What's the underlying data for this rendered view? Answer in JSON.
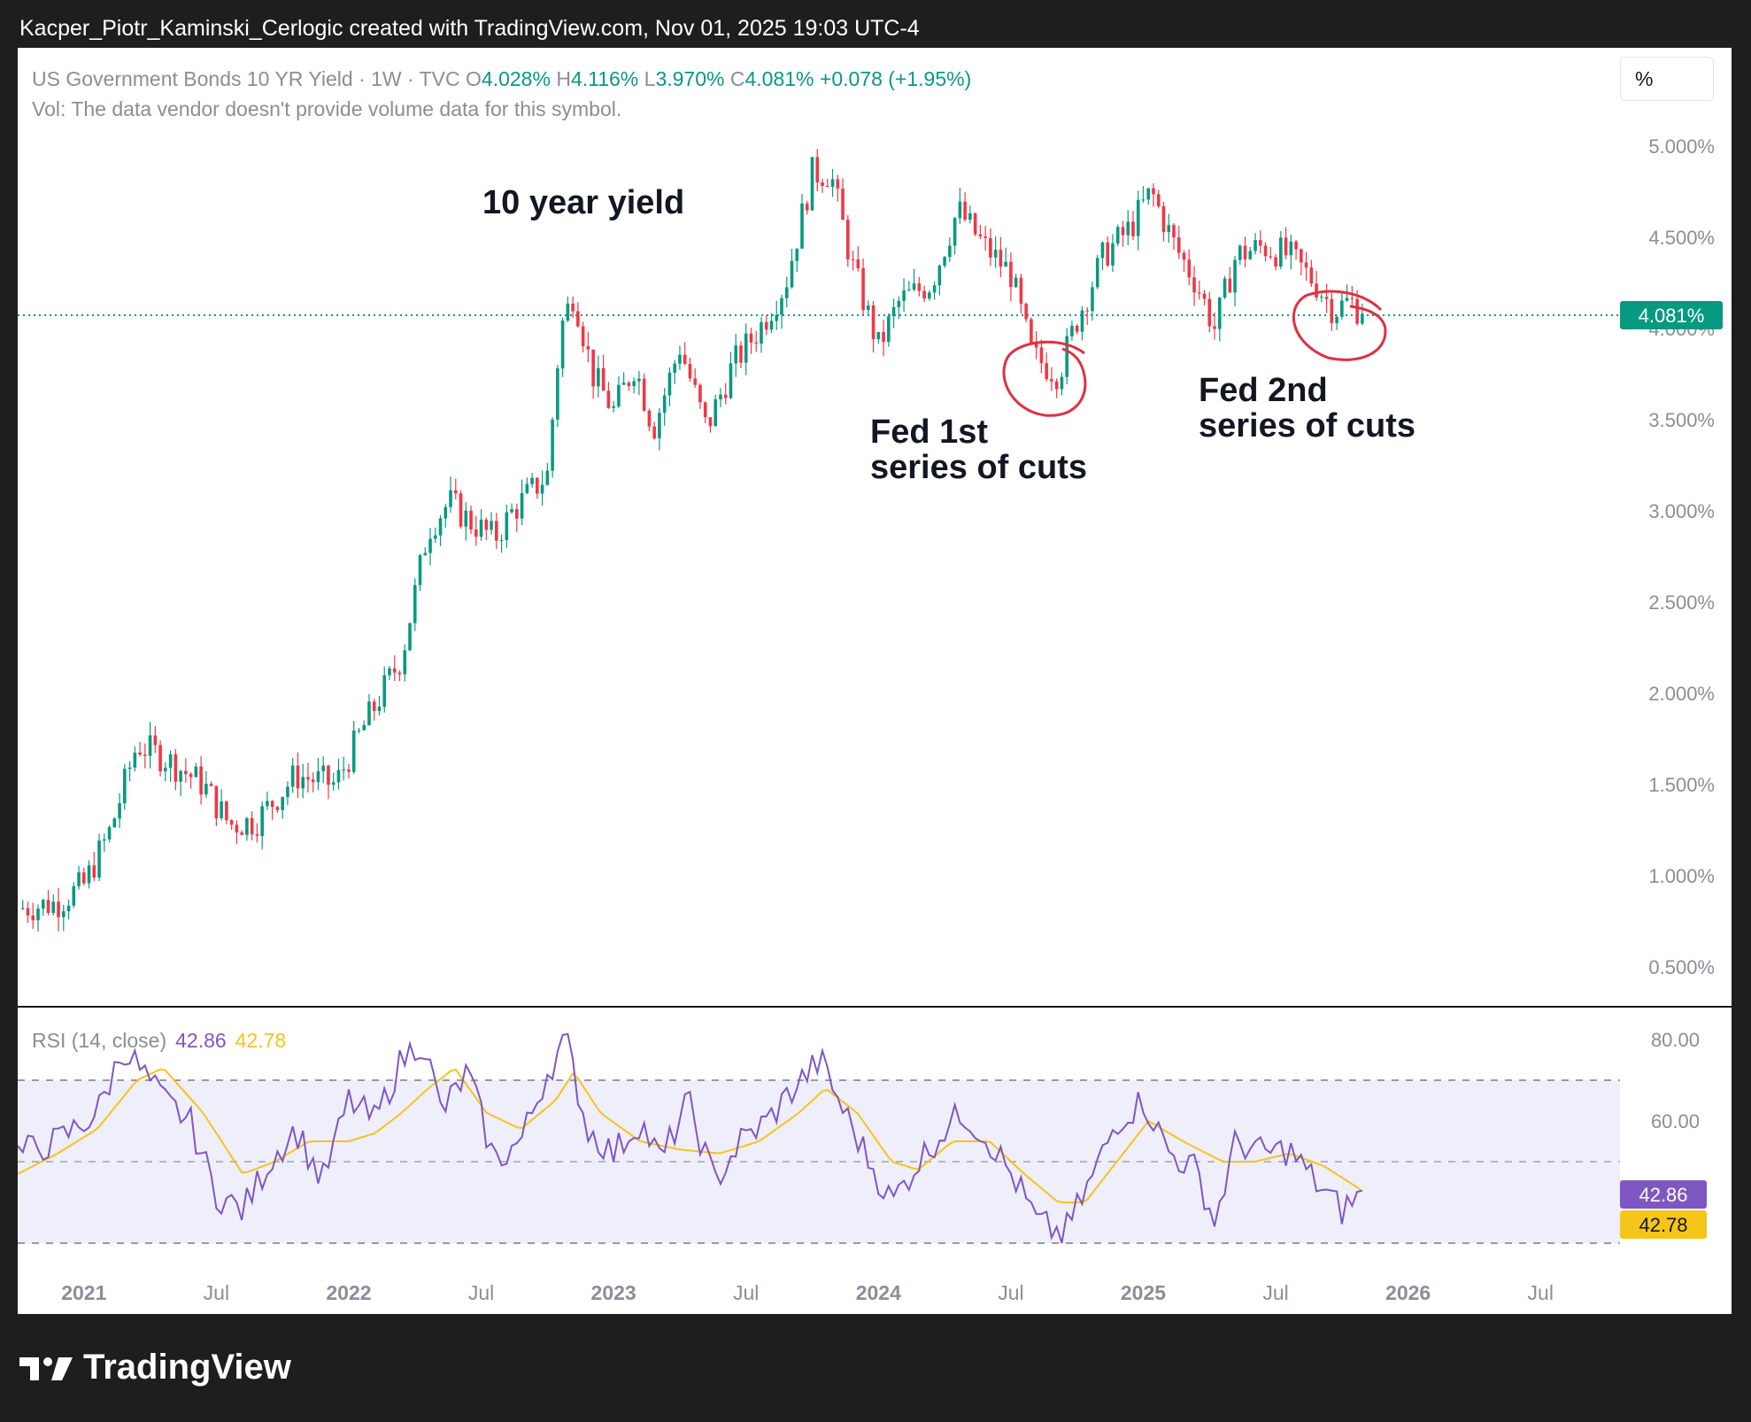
{
  "caption": "Kacper_Piotr_Kaminski_Cerlogic created with TradingView.com, Nov 01, 2025 19:03 UTC-4",
  "brand": "TradingView",
  "legend": {
    "symbol": "US Government Bonds 10 YR Yield · 1W · TVC",
    "o_label": "O",
    "o": "4.028%",
    "h_label": "H",
    "h": "4.116%",
    "l_label": "L",
    "l": "3.970%",
    "c_label": "C",
    "c": "4.081%",
    "change": "+0.078 (+1.95%)",
    "vol": "Vol: The data vendor doesn't provide volume data for this symbol."
  },
  "unit_button": "%",
  "rsi_legend": {
    "label": "RSI (14, close)",
    "rsi": "42.86",
    "ma": "42.78"
  },
  "colors": {
    "up": "#089981",
    "down": "#f23645",
    "rsi": "#7e57c2",
    "rsi_ma": "#f5c518",
    "annotation": "#e0303f"
  },
  "chart_data": {
    "type": "candlestick",
    "timeframe": "1W",
    "y_axis_ticks": [
      "5.000%",
      "4.500%",
      "4.000%",
      "3.500%",
      "3.000%",
      "2.500%",
      "2.000%",
      "1.500%",
      "1.000%",
      "0.500%"
    ],
    "y_axis_values": [
      5.0,
      4.5,
      4.0,
      3.5,
      3.0,
      2.5,
      2.0,
      1.5,
      1.0,
      0.5
    ],
    "ylim": [
      0.3,
      5.2
    ],
    "x_axis_ticks": [
      "2021",
      "Jul",
      "2022",
      "Jul",
      "2023",
      "Jul",
      "2024",
      "Jul",
      "2025",
      "Jul",
      "2026",
      "Jul"
    ],
    "last_price_label": "4.081%",
    "last_price": 4.081,
    "x_start": 2020.75,
    "x_end": 2026.8,
    "anchors": [
      [
        2020.75,
        0.82
      ],
      [
        2020.9,
        0.85
      ],
      [
        2021.0,
        0.95
      ],
      [
        2021.1,
        1.25
      ],
      [
        2021.2,
        1.72
      ],
      [
        2021.3,
        1.65
      ],
      [
        2021.45,
        1.5
      ],
      [
        2021.55,
        1.28
      ],
      [
        2021.65,
        1.3
      ],
      [
        2021.8,
        1.55
      ],
      [
        2021.95,
        1.5
      ],
      [
        2022.05,
        1.8
      ],
      [
        2022.2,
        2.2
      ],
      [
        2022.3,
        2.9
      ],
      [
        2022.38,
        3.05
      ],
      [
        2022.45,
        2.95
      ],
      [
        2022.55,
        2.85
      ],
      [
        2022.62,
        3.0
      ],
      [
        2022.75,
        3.2
      ],
      [
        2022.8,
        4.0
      ],
      [
        2022.85,
        4.2
      ],
      [
        2022.92,
        3.75
      ],
      [
        2023.0,
        3.55
      ],
      [
        2023.08,
        3.8
      ],
      [
        2023.15,
        3.45
      ],
      [
        2023.25,
        3.9
      ],
      [
        2023.35,
        3.45
      ],
      [
        2023.45,
        3.8
      ],
      [
        2023.55,
        4.0
      ],
      [
        2023.65,
        4.25
      ],
      [
        2023.75,
        4.85
      ],
      [
        2023.82,
        4.85
      ],
      [
        2023.9,
        4.35
      ],
      [
        2024.0,
        3.9
      ],
      [
        2024.08,
        4.15
      ],
      [
        2024.2,
        4.25
      ],
      [
        2024.3,
        4.65
      ],
      [
        2024.4,
        4.45
      ],
      [
        2024.5,
        4.3
      ],
      [
        2024.58,
        3.85
      ],
      [
        2024.68,
        3.75
      ],
      [
        2024.75,
        4.05
      ],
      [
        2024.85,
        4.4
      ],
      [
        2024.95,
        4.55
      ],
      [
        2025.03,
        4.75
      ],
      [
        2025.12,
        4.45
      ],
      [
        2025.2,
        4.25
      ],
      [
        2025.27,
        4.0
      ],
      [
        2025.35,
        4.4
      ],
      [
        2025.45,
        4.45
      ],
      [
        2025.55,
        4.4
      ],
      [
        2025.65,
        4.25
      ],
      [
        2025.72,
        4.1
      ],
      [
        2025.78,
        4.15
      ],
      [
        2025.83,
        4.081
      ]
    ],
    "rsi": {
      "label": "RSI (14, close)",
      "ylim": [
        20,
        90
      ],
      "y_axis_ticks": [
        "80.00",
        "60.00"
      ],
      "y_axis_values": [
        80,
        60
      ],
      "bands": [
        70,
        50,
        30
      ],
      "rsi_last": 42.86,
      "ma_last": 42.78,
      "rsi_anchors": [
        [
          2020.75,
          52
        ],
        [
          2020.9,
          55
        ],
        [
          2021.05,
          62
        ],
        [
          2021.15,
          78
        ],
        [
          2021.22,
          72
        ],
        [
          2021.3,
          65
        ],
        [
          2021.4,
          60
        ],
        [
          2021.5,
          42
        ],
        [
          2021.6,
          38
        ],
        [
          2021.7,
          50
        ],
        [
          2021.8,
          58
        ],
        [
          2021.9,
          45
        ],
        [
          2022.0,
          65
        ],
        [
          2022.1,
          60
        ],
        [
          2022.2,
          75
        ],
        [
          2022.28,
          80
        ],
        [
          2022.35,
          62
        ],
        [
          2022.45,
          72
        ],
        [
          2022.55,
          50
        ],
        [
          2022.65,
          55
        ],
        [
          2022.75,
          72
        ],
        [
          2022.82,
          80
        ],
        [
          2022.9,
          58
        ],
        [
          2023.0,
          52
        ],
        [
          2023.1,
          60
        ],
        [
          2023.18,
          50
        ],
        [
          2023.28,
          65
        ],
        [
          2023.38,
          45
        ],
        [
          2023.48,
          55
        ],
        [
          2023.58,
          60
        ],
        [
          2023.68,
          68
        ],
        [
          2023.78,
          75
        ],
        [
          2023.85,
          65
        ],
        [
          2023.95,
          52
        ],
        [
          2024.05,
          40
        ],
        [
          2024.15,
          50
        ],
        [
          2024.25,
          58
        ],
        [
          2024.32,
          62
        ],
        [
          2024.42,
          55
        ],
        [
          2024.52,
          45
        ],
        [
          2024.6,
          35
        ],
        [
          2024.7,
          32
        ],
        [
          2024.8,
          45
        ],
        [
          2024.9,
          60
        ],
        [
          2025.0,
          65
        ],
        [
          2025.1,
          52
        ],
        [
          2025.2,
          48
        ],
        [
          2025.27,
          35
        ],
        [
          2025.35,
          55
        ],
        [
          2025.45,
          52
        ],
        [
          2025.55,
          53
        ],
        [
          2025.65,
          45
        ],
        [
          2025.75,
          38
        ],
        [
          2025.83,
          42.86
        ]
      ],
      "ma_anchors": [
        [
          2020.75,
          47
        ],
        [
          2020.9,
          52
        ],
        [
          2021.05,
          58
        ],
        [
          2021.2,
          70
        ],
        [
          2021.3,
          73
        ],
        [
          2021.45,
          62
        ],
        [
          2021.6,
          47
        ],
        [
          2021.72,
          50
        ],
        [
          2021.85,
          55
        ],
        [
          2022.0,
          55
        ],
        [
          2022.1,
          57
        ],
        [
          2022.2,
          62
        ],
        [
          2022.3,
          68
        ],
        [
          2022.4,
          73
        ],
        [
          2022.52,
          62
        ],
        [
          2022.65,
          58
        ],
        [
          2022.78,
          65
        ],
        [
          2022.85,
          72
        ],
        [
          2022.95,
          62
        ],
        [
          2023.1,
          55
        ],
        [
          2023.25,
          53
        ],
        [
          2023.4,
          52
        ],
        [
          2023.55,
          55
        ],
        [
          2023.7,
          62
        ],
        [
          2023.8,
          68
        ],
        [
          2023.92,
          62
        ],
        [
          2024.05,
          50
        ],
        [
          2024.15,
          48
        ],
        [
          2024.28,
          55
        ],
        [
          2024.42,
          55
        ],
        [
          2024.55,
          47
        ],
        [
          2024.68,
          40
        ],
        [
          2024.78,
          40
        ],
        [
          2024.9,
          50
        ],
        [
          2025.02,
          60
        ],
        [
          2025.15,
          55
        ],
        [
          2025.3,
          50
        ],
        [
          2025.42,
          50
        ],
        [
          2025.55,
          52
        ],
        [
          2025.68,
          49
        ],
        [
          2025.83,
          42.78
        ]
      ]
    },
    "annotations": [
      "10 year yield",
      "Fed 1st",
      "series of cuts",
      "Fed 2nd",
      "series of cuts"
    ]
  }
}
